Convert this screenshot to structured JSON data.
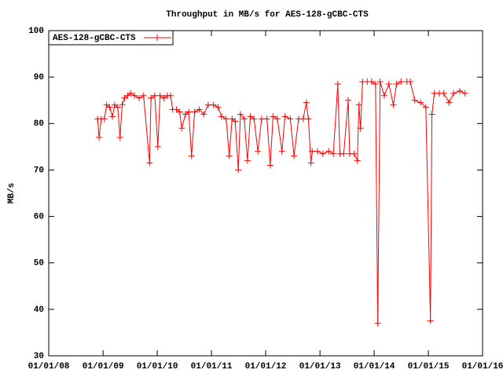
{
  "chart_data": {
    "type": "line",
    "title": "Throughput in MB/s for AES-128-gCBC-CTS",
    "y_label": "MB/s",
    "legend": "top-left",
    "x": [
      "2008-11-25",
      "2008-12-05",
      "2008-12-20",
      "2009-01-10",
      "2009-01-25",
      "2009-02-15",
      "2009-03-05",
      "2009-03-20",
      "2009-04-10",
      "2009-04-25",
      "2009-05-10",
      "2009-05-25",
      "2009-06-15",
      "2009-07-05",
      "2009-08-01",
      "2009-09-01",
      "2009-10-01",
      "2009-11-10",
      "2009-11-20",
      "2009-12-15",
      "2010-01-05",
      "2010-01-20",
      "2010-02-15",
      "2010-03-10",
      "2010-04-01",
      "2010-04-15",
      "2010-05-10",
      "2010-06-01",
      "2010-06-15",
      "2010-07-10",
      "2010-08-01",
      "2010-08-20",
      "2010-09-10",
      "2010-10-10",
      "2010-11-10",
      "2010-12-10",
      "2011-01-15",
      "2011-02-15",
      "2011-03-10",
      "2011-04-10",
      "2011-05-01",
      "2011-05-20",
      "2011-06-10",
      "2011-07-01",
      "2011-07-15",
      "2011-08-10",
      "2011-09-01",
      "2011-09-20",
      "2011-10-15",
      "2011-11-10",
      "2011-12-05",
      "2012-01-10",
      "2012-02-01",
      "2012-02-20",
      "2012-03-20",
      "2012-04-20",
      "2012-05-10",
      "2012-06-15",
      "2012-07-10",
      "2012-08-10",
      "2012-09-10",
      "2012-10-01",
      "2012-10-15",
      "2012-11-01",
      "2012-11-10",
      "2012-12-15",
      "2013-01-20",
      "2013-03-01",
      "2013-04-01",
      "2013-05-01",
      "2013-05-15",
      "2013-06-10",
      "2013-07-10",
      "2013-07-20",
      "2013-08-20",
      "2013-09-10",
      "2013-09-20",
      "2013-10-01",
      "2013-10-15",
      "2013-11-15",
      "2013-12-15",
      "2014-01-10",
      "2014-01-25",
      "2014-02-10",
      "2014-03-10",
      "2014-04-10",
      "2014-05-10",
      "2014-06-01",
      "2014-07-01",
      "2014-08-10",
      "2014-09-01",
      "2014-10-01",
      "2014-11-10",
      "2014-12-15",
      "2015-01-15",
      "2015-01-25",
      "2015-02-10",
      "2015-03-15",
      "2015-04-15",
      "2015-05-20",
      "2015-06-20",
      "2015-08-01",
      "2015-09-05"
    ],
    "series": [
      {
        "name": "AES-128-gCBC-CTS",
        "color": "#ff0000",
        "values": [
          81,
          77,
          81,
          81,
          84,
          83.5,
          81.5,
          84,
          83.5,
          77,
          84,
          85.5,
          86,
          86.5,
          86,
          85.5,
          86,
          71.5,
          85.5,
          86,
          75,
          86,
          85.5,
          86,
          86,
          83,
          83,
          82.5,
          79,
          82,
          82.5,
          73,
          82.5,
          83,
          82,
          84,
          84,
          83.5,
          81.5,
          81,
          73,
          81,
          80.5,
          70,
          82,
          81,
          72,
          81.5,
          81,
          74,
          81,
          81,
          71,
          81.5,
          81,
          74,
          81.5,
          81,
          73,
          81,
          81,
          84.5,
          81,
          71.5,
          74,
          74,
          73.5,
          74,
          73.5,
          88.5,
          73.5,
          73.5,
          85,
          73.5,
          73.5,
          72,
          84,
          79,
          89,
          89,
          89,
          88.5,
          37,
          89,
          86,
          88.5,
          84,
          88.5,
          89,
          89,
          89,
          85,
          84.5,
          83.5,
          37.5,
          82,
          86.5,
          86.5,
          86.5,
          84.5,
          86.5,
          87,
          86.5
        ]
      }
    ],
    "xlim": [
      "2008-01-01",
      "2016-01-01"
    ],
    "xticks": [
      {
        "value": "2008-01-01",
        "label": "01/01/08"
      },
      {
        "value": "2009-01-01",
        "label": "01/01/09"
      },
      {
        "value": "2010-01-01",
        "label": "01/01/10"
      },
      {
        "value": "2011-01-01",
        "label": "01/01/11"
      },
      {
        "value": "2012-01-01",
        "label": "01/01/12"
      },
      {
        "value": "2013-01-01",
        "label": "01/01/13"
      },
      {
        "value": "2014-01-01",
        "label": "01/01/14"
      },
      {
        "value": "2015-01-01",
        "label": "01/01/15"
      },
      {
        "value": "2016-01-01",
        "label": "01/01/16"
      }
    ],
    "ylim": [
      30,
      100
    ],
    "yticks": [
      30,
      40,
      50,
      60,
      70,
      80,
      90,
      100
    ]
  }
}
